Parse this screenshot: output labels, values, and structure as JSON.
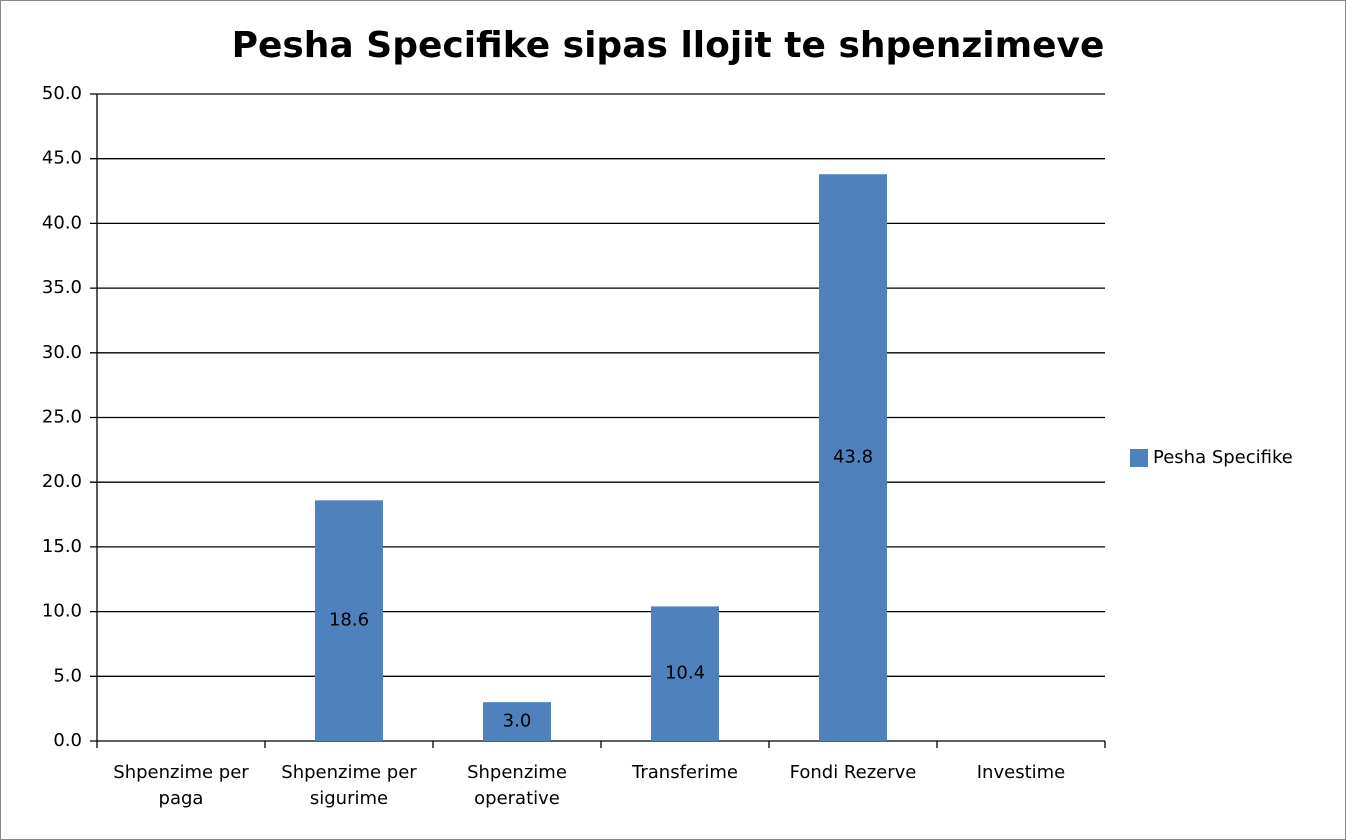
{
  "chart_data": {
    "type": "bar",
    "title": "Pesha Specifike sipas llojit te shpenzimeve",
    "categories": [
      "Shpenzime per paga",
      "Shpenzime per sigurime",
      "Shpenzime operative",
      "Transferime",
      "Fondi Rezerve",
      "Investime"
    ],
    "series": [
      {
        "name": "Pesha Specifike",
        "color": "#4f81bd",
        "values": [
          null,
          18.6,
          3,
          10.4,
          43.8,
          null
        ],
        "value_labels": [
          null,
          "18.6",
          "3.0",
          "10.4",
          "43.8",
          null
        ]
      }
    ],
    "ylim": [
      0,
      50
    ],
    "yticks": [
      {
        "value": 0,
        "label": "0.0"
      },
      {
        "value": 5,
        "label": "5.0"
      },
      {
        "value": 10,
        "label": "10.0"
      },
      {
        "value": 15,
        "label": "15.0"
      },
      {
        "value": 20,
        "label": "20.0"
      },
      {
        "value": 25,
        "label": "25.0"
      },
      {
        "value": 30,
        "label": "30.0"
      },
      {
        "value": 35,
        "label": "35.0"
      },
      {
        "value": 40,
        "label": "40.0"
      },
      {
        "value": 45,
        "label": "45.0"
      },
      {
        "value": 50,
        "label": "50.0"
      }
    ],
    "grid": true,
    "legend": "right"
  }
}
